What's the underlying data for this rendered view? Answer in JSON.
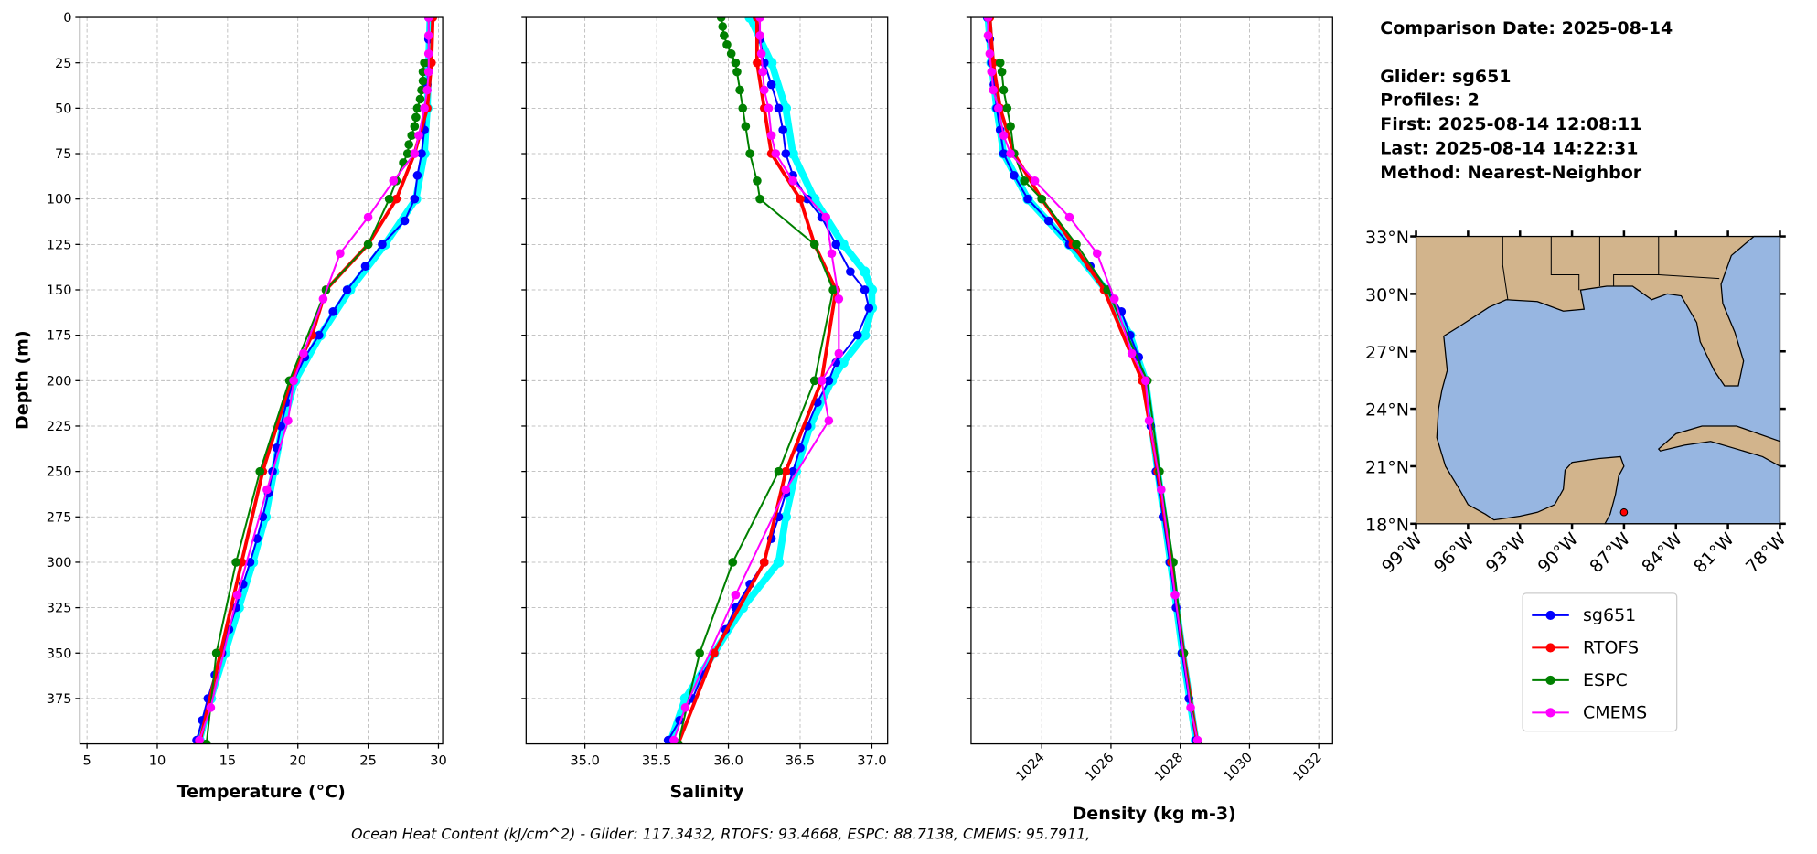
{
  "info": {
    "comparison_date": "Comparison Date: 2025-08-14",
    "glider": "Glider: sg651",
    "profiles": "Profiles: 2",
    "first": "First: 2025-08-14 12:08:11",
    "last": "Last: 2025-08-14 14:22:31",
    "method": "Method: Nearest-Neighbor"
  },
  "footer": "Ocean Heat Content (kJ/cm^2) - Glider: 117.3432,  RTOFS: 93.4668,  ESPC: 88.7138,  CMEMS: 95.7911,",
  "colors": {
    "sg651": "#0000ff",
    "sg651_profile2": "#00ffff",
    "RTOFS": "#ff0000",
    "ESPC": "#008000",
    "CMEMS": "#ff00ff",
    "land": "#d2b48c",
    "water": "#97b6e1"
  },
  "legend": [
    "sg651",
    "RTOFS",
    "ESPC",
    "CMEMS"
  ],
  "chart_data": [
    {
      "type": "line",
      "xlabel": "Temperature (°C)",
      "ylabel": "Depth (m)",
      "xlim": [
        4.5,
        30.3
      ],
      "ylim": [
        400,
        0
      ],
      "xticks": [
        "5",
        "10",
        "15",
        "20",
        "25",
        "30"
      ],
      "yticks": [
        "0",
        "25",
        "50",
        "75",
        "100",
        "125",
        "150",
        "175",
        "200",
        "225",
        "250",
        "275",
        "300",
        "325",
        "350",
        "375"
      ],
      "grid": true,
      "series": [
        {
          "name": "sg651_profile2",
          "depth": [
            0,
            25,
            50,
            75,
            100,
            125,
            150,
            175,
            200,
            225,
            250,
            275,
            300,
            325,
            350,
            375,
            398
          ],
          "values": [
            29.4,
            29.3,
            29.2,
            29.0,
            28.4,
            26.2,
            23.7,
            21.6,
            19.8,
            18.9,
            18.3,
            17.7,
            16.8,
            15.8,
            14.8,
            13.8,
            13.0
          ]
        },
        {
          "name": "sg651",
          "depth": [
            0,
            12,
            25,
            37,
            50,
            62,
            75,
            87,
            100,
            112,
            125,
            137,
            150,
            162,
            175,
            187,
            200,
            212,
            225,
            237,
            250,
            262,
            275,
            287,
            300,
            312,
            325,
            337,
            350,
            362,
            375,
            387,
            398
          ],
          "values": [
            29.3,
            29.3,
            29.3,
            29.2,
            29.1,
            29.0,
            28.8,
            28.5,
            28.3,
            27.6,
            26.0,
            24.8,
            23.5,
            22.5,
            21.5,
            20.5,
            19.7,
            19.2,
            18.8,
            18.5,
            18.2,
            17.9,
            17.5,
            17.1,
            16.6,
            16.1,
            15.6,
            15.1,
            14.6,
            14.1,
            13.6,
            13.2,
            12.8
          ]
        },
        {
          "name": "RTOFS",
          "depth": [
            0,
            25,
            50,
            75,
            100,
            125,
            150,
            175,
            200,
            250,
            300,
            350,
            400
          ],
          "values": [
            29.6,
            29.5,
            29.2,
            28.3,
            27.0,
            25.0,
            22.0,
            21.0,
            19.5,
            17.5,
            16.0,
            14.5,
            13.0
          ]
        },
        {
          "name": "ESPC",
          "depth": [
            25,
            30,
            35,
            40,
            45,
            50,
            55,
            60,
            65,
            70,
            75,
            80,
            90,
            100,
            125,
            150,
            200,
            250,
            300,
            350,
            400
          ],
          "values": [
            29.0,
            28.9,
            28.9,
            28.8,
            28.7,
            28.5,
            28.4,
            28.3,
            28.1,
            27.9,
            27.8,
            27.5,
            27.0,
            26.5,
            25.0,
            22.0,
            19.4,
            17.3,
            15.6,
            14.2,
            13.5
          ]
        },
        {
          "name": "CMEMS",
          "depth": [
            0,
            10,
            20,
            30,
            40,
            50,
            65,
            75,
            90,
            110,
            130,
            155,
            185,
            200,
            222,
            260,
            318,
            380,
            398
          ],
          "values": [
            29.3,
            29.3,
            29.3,
            29.3,
            29.2,
            29.0,
            28.6,
            28.3,
            26.8,
            25.0,
            23.0,
            21.8,
            20.4,
            19.7,
            19.3,
            17.8,
            15.7,
            13.8,
            13.0
          ]
        }
      ]
    },
    {
      "type": "line",
      "xlabel": "Salinity",
      "xlim": [
        34.59,
        37.11
      ],
      "ylim": [
        400,
        0
      ],
      "xticks": [
        "35.0",
        "35.5",
        "36.0",
        "36.5",
        "37.0"
      ],
      "grid": true,
      "series": [
        {
          "name": "sg651_profile2",
          "depth": [
            0,
            25,
            50,
            75,
            100,
            125,
            140,
            150,
            160,
            175,
            190,
            200,
            225,
            250,
            275,
            300,
            325,
            350,
            375,
            398
          ],
          "values": [
            36.15,
            36.3,
            36.4,
            36.45,
            36.6,
            36.8,
            36.95,
            37.0,
            37.0,
            36.95,
            36.8,
            36.72,
            36.57,
            36.47,
            36.4,
            36.35,
            36.1,
            35.9,
            35.7,
            35.6
          ]
        },
        {
          "name": "sg651",
          "depth": [
            0,
            12,
            25,
            37,
            50,
            62,
            75,
            87,
            100,
            110,
            125,
            140,
            150,
            160,
            175,
            190,
            200,
            212,
            225,
            237,
            250,
            262,
            275,
            287,
            300,
            312,
            325,
            337,
            350,
            362,
            375,
            387,
            398
          ],
          "values": [
            36.2,
            36.22,
            36.25,
            36.3,
            36.35,
            36.38,
            36.4,
            36.45,
            36.55,
            36.65,
            36.75,
            36.85,
            36.95,
            36.98,
            36.9,
            36.75,
            36.7,
            36.62,
            36.55,
            36.5,
            36.45,
            36.4,
            36.35,
            36.3,
            36.25,
            36.15,
            36.05,
            35.98,
            35.9,
            35.82,
            35.75,
            35.66,
            35.58
          ]
        },
        {
          "name": "RTOFS",
          "depth": [
            0,
            25,
            50,
            75,
            100,
            125,
            150,
            200,
            250,
            300,
            350,
            400
          ],
          "values": [
            36.2,
            36.2,
            36.25,
            36.3,
            36.5,
            36.6,
            36.75,
            36.65,
            36.4,
            36.25,
            35.9,
            35.65
          ]
        },
        {
          "name": "ESPC",
          "depth": [
            0,
            5,
            10,
            15,
            20,
            25,
            30,
            40,
            50,
            60,
            75,
            90,
            100,
            125,
            150,
            200,
            250,
            300,
            350,
            400
          ],
          "values": [
            35.95,
            35.96,
            35.97,
            35.99,
            36.02,
            36.05,
            36.06,
            36.08,
            36.1,
            36.12,
            36.15,
            36.2,
            36.22,
            36.6,
            36.73,
            36.6,
            36.35,
            36.03,
            35.8,
            35.65
          ]
        },
        {
          "name": "CMEMS",
          "depth": [
            0,
            10,
            20,
            30,
            40,
            50,
            65,
            75,
            90,
            110,
            130,
            155,
            185,
            200,
            222,
            260,
            318,
            380,
            398
          ],
          "values": [
            36.22,
            36.22,
            36.23,
            36.24,
            36.25,
            36.28,
            36.3,
            36.33,
            36.45,
            36.68,
            36.72,
            36.77,
            36.77,
            36.65,
            36.7,
            36.4,
            36.05,
            35.7,
            35.62
          ]
        }
      ]
    },
    {
      "type": "line",
      "xlabel": "Density (kg m-3)",
      "xlim": [
        1021.96,
        1032.4
      ],
      "ylim": [
        400,
        0
      ],
      "xticks": [
        "1024",
        "1026",
        "1028",
        "1030",
        "1032"
      ],
      "grid": true,
      "series": [
        {
          "name": "sg651_profile2",
          "depth": [
            0,
            25,
            50,
            75,
            100,
            125,
            150,
            175,
            200,
            250,
            300,
            350,
            398
          ],
          "values": [
            1022.45,
            1022.55,
            1022.7,
            1022.9,
            1023.6,
            1024.8,
            1025.85,
            1026.55,
            1027.0,
            1027.35,
            1027.72,
            1028.07,
            1028.45
          ]
        },
        {
          "name": "sg651",
          "depth": [
            0,
            12,
            25,
            37,
            50,
            62,
            75,
            87,
            100,
            112,
            125,
            137,
            150,
            162,
            175,
            187,
            200,
            225,
            250,
            275,
            300,
            325,
            350,
            375,
            398
          ],
          "values": [
            1022.43,
            1022.5,
            1022.55,
            1022.62,
            1022.7,
            1022.8,
            1022.9,
            1023.2,
            1023.6,
            1024.2,
            1024.8,
            1025.4,
            1025.9,
            1026.3,
            1026.55,
            1026.8,
            1026.95,
            1027.15,
            1027.3,
            1027.5,
            1027.7,
            1027.88,
            1028.05,
            1028.25,
            1028.45
          ]
        },
        {
          "name": "RTOFS",
          "depth": [
            0,
            25,
            50,
            75,
            100,
            125,
            150,
            200,
            250,
            300,
            350,
            400
          ],
          "values": [
            1022.5,
            1022.6,
            1022.8,
            1023.2,
            1024.0,
            1024.9,
            1025.8,
            1026.9,
            1027.35,
            1027.75,
            1028.1,
            1028.5
          ]
        },
        {
          "name": "ESPC",
          "depth": [
            25,
            30,
            40,
            50,
            60,
            75,
            90,
            100,
            125,
            150,
            200,
            250,
            300,
            350,
            400
          ],
          "values": [
            1022.8,
            1022.85,
            1022.9,
            1023.0,
            1023.1,
            1023.2,
            1023.5,
            1024.0,
            1025.0,
            1025.9,
            1027.05,
            1027.4,
            1027.8,
            1028.1,
            1028.5
          ]
        },
        {
          "name": "CMEMS",
          "depth": [
            0,
            10,
            20,
            30,
            40,
            50,
            65,
            75,
            90,
            110,
            130,
            155,
            185,
            200,
            222,
            260,
            318,
            380,
            398
          ],
          "values": [
            1022.45,
            1022.45,
            1022.5,
            1022.55,
            1022.6,
            1022.75,
            1022.9,
            1023.1,
            1023.8,
            1024.8,
            1025.6,
            1026.1,
            1026.6,
            1027.0,
            1027.1,
            1027.45,
            1027.85,
            1028.3,
            1028.5
          ]
        }
      ]
    },
    {
      "type": "map",
      "lon_range": [
        -99,
        -78
      ],
      "lat_range": [
        18,
        33
      ],
      "xticks": [
        "99°W",
        "96°W",
        "93°W",
        "90°W",
        "87°W",
        "84°W",
        "81°W",
        "78°W"
      ],
      "yticks": [
        "18°N",
        "21°N",
        "24°N",
        "27°N",
        "30°N",
        "33°N"
      ],
      "glider_location": {
        "lon": -87.0,
        "lat": 18.6
      }
    }
  ]
}
